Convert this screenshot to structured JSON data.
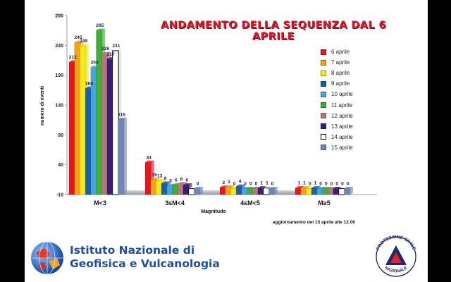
{
  "chart_data": {
    "type": "bar",
    "title": "ANDAMENTO DELLA SEQUENZA DAL 6 APRILE",
    "xlabel": "Magnitudo",
    "ylabel": "numero di eventi",
    "ylim": [
      -10,
      290
    ],
    "yticks": [
      -10,
      40,
      90,
      140,
      190,
      240,
      290
    ],
    "grid": false,
    "legend_position": "right",
    "categories": [
      "M<3",
      "3≤M<4",
      "4≤M<5",
      "M≥5"
    ],
    "series": [
      {
        "name": "6 aprile",
        "color": "#e8161c",
        "values": [
          212,
          44,
          2,
          1
        ]
      },
      {
        "name": "7 aprile",
        "color": "#f5a21b",
        "values": [
          245,
          15,
          3,
          1
        ]
      },
      {
        "name": "8 aprile",
        "color": "#f2ec1c",
        "values": [
          239,
          13,
          0,
          0
        ]
      },
      {
        "name": "9 aprile",
        "color": "#1b5fa8",
        "values": [
          168,
          9,
          4,
          1
        ]
      },
      {
        "name": "10 aprile",
        "color": "#4aa3df",
        "values": [
          203,
          5,
          0,
          0
        ]
      },
      {
        "name": "11 aprile",
        "color": "#3fae3a",
        "values": [
          265,
          6,
          0,
          0
        ]
      },
      {
        "name": "12 aprile",
        "color": "#b07a78",
        "values": [
          226,
          8,
          0,
          0
        ]
      },
      {
        "name": "13 aprile",
        "color": "#3b1c7a",
        "values": [
          217,
          6,
          1,
          0
        ]
      },
      {
        "name": "14 aprile",
        "color": "#ffffff",
        "values": [
          231,
          0,
          1,
          0
        ]
      },
      {
        "name": "15 aprile",
        "color": "#7187b8",
        "values": [
          116,
          0,
          0,
          0
        ]
      }
    ],
    "data_labels": [
      [
        "212",
        "245",
        "239",
        "168",
        "203",
        "265",
        "226",
        "217",
        "231",
        "116"
      ],
      [
        "44",
        "15",
        "13",
        "9",
        "5",
        "6",
        "8",
        "6",
        "",
        "0"
      ],
      [
        "2",
        "3",
        "0",
        "4",
        "0",
        "0",
        "0",
        "1",
        "1",
        "0"
      ],
      [
        "1",
        "1",
        "0",
        "1",
        "0",
        "0",
        "0",
        "0",
        "0",
        "0"
      ]
    ],
    "annotation": "aggiornamento del 15 aprile alle 12.00"
  },
  "logos": {
    "ingv_line1": "Istituto Nazionale di",
    "ingv_line2": "Geofisica e Vulcanologia",
    "protezione_civile": "PROTEZIONE CIVILE",
    "protezione_civile_bottom": "NAZIONALE"
  },
  "colors": {
    "title": "#d8192a",
    "ingv_blue": "#1f4e9b"
  }
}
